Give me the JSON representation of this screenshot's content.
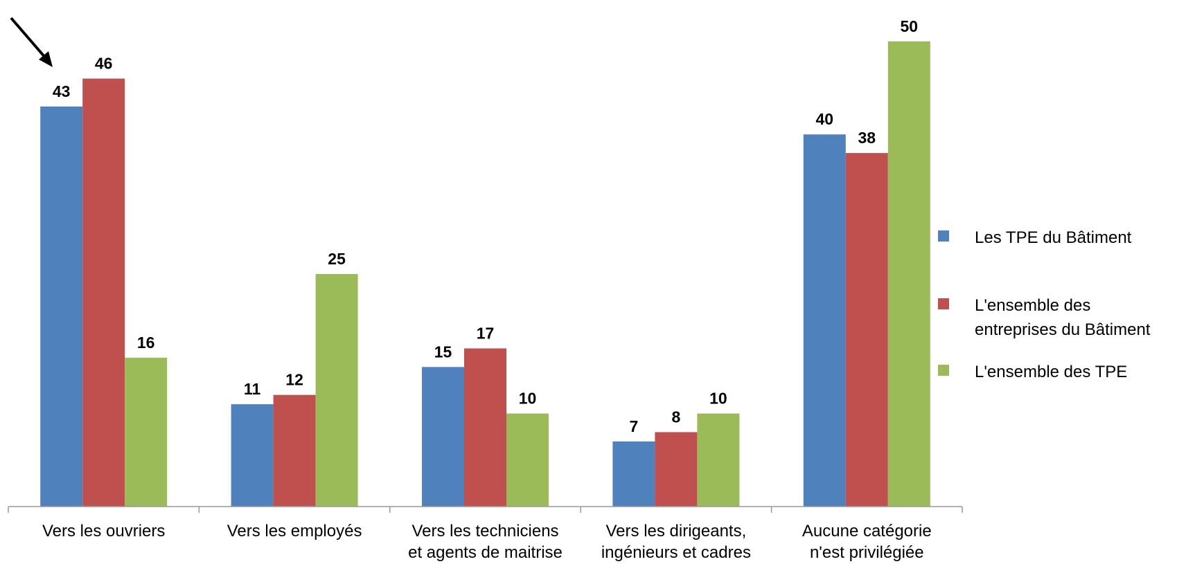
{
  "chart_data": {
    "type": "bar",
    "categories": [
      "Vers les ouvriers",
      "Vers les employés",
      "Vers les techniciens\net agents de maitrise",
      "Vers les dirigeants,\ningénieurs et cadres",
      "Aucune catégorie\nn'est privilégiée"
    ],
    "series": [
      {
        "name": "Les TPE du Bâtiment",
        "color": "#4f81bd",
        "values": [
          43,
          11,
          15,
          7,
          40
        ]
      },
      {
        "name": "L'ensemble des\nentreprises du Bâtiment",
        "color": "#c0504d",
        "values": [
          46,
          12,
          17,
          8,
          38
        ]
      },
      {
        "name": "L'ensemble des TPE",
        "color": "#9bbb59",
        "values": [
          16,
          25,
          10,
          10,
          50
        ]
      }
    ],
    "ylim": [
      0,
      54
    ],
    "legend": "right"
  }
}
